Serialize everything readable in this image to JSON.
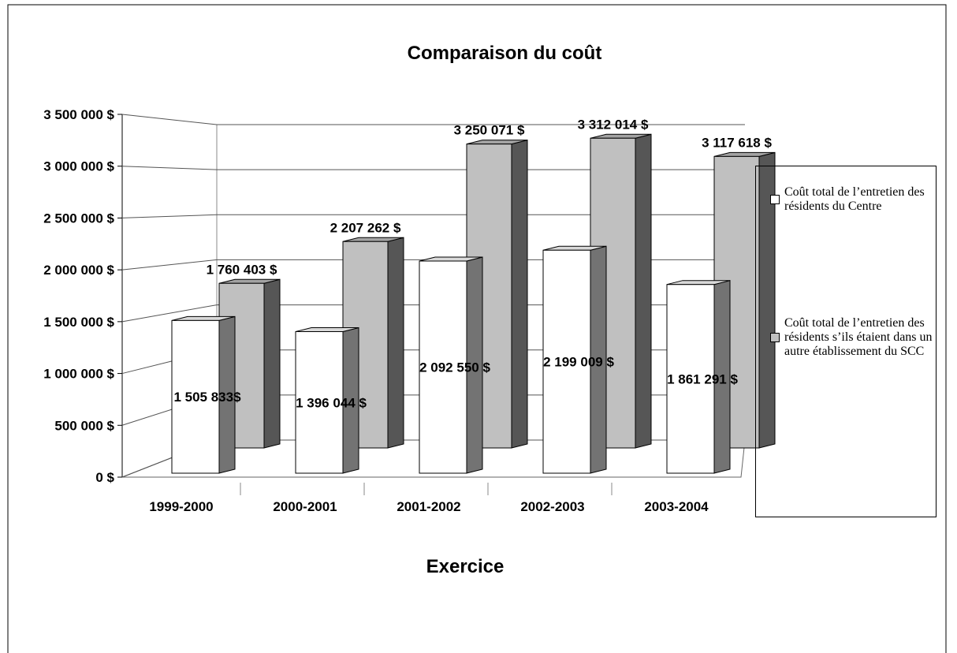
{
  "chart_data": {
    "type": "bar3d",
    "title": "Comparaison du coût",
    "xlabel": "Exercice",
    "categories": [
      "1999-2000",
      "2000-2001",
      "2001-2002",
      "2002-2003",
      "2003-2004"
    ],
    "series": [
      {
        "name": "Coût total de l’entretien des résidents du Centre",
        "color": "#ffffff",
        "values": [
          1505833,
          1396044,
          2092550,
          2199009,
          1861291
        ],
        "value_labels": [
          "1 505 833$",
          "1 396 044 $",
          "2 092 550 $",
          "2 199 009 $",
          "1 861 291 $"
        ]
      },
      {
        "name": "Coût total de l’entretien des résidents s’ils étaient dans un autre établissement du SCC",
        "color": "#c0c0c0",
        "values": [
          1760403,
          2207262,
          3250071,
          3312014,
          3117618
        ],
        "value_labels": [
          "1 760 403 $",
          "2 207 262 $",
          "3 250 071 $",
          "3 312 014 $",
          "3 117 618 $"
        ]
      }
    ],
    "ylim": [
      0,
      3500000
    ],
    "yticks": [
      {
        "value": 0,
        "label": "0 $"
      },
      {
        "value": 500000,
        "label": "500 000 $"
      },
      {
        "value": 1000000,
        "label": "1 000 000 $"
      },
      {
        "value": 1500000,
        "label": "1 500 000 $"
      },
      {
        "value": 2000000,
        "label": "2 000 000 $"
      },
      {
        "value": 2500000,
        "label": "2 500 000 $"
      },
      {
        "value": 3000000,
        "label": "3 000 000 $"
      },
      {
        "value": 3500000,
        "label": "3 500 000 $"
      }
    ],
    "grid": true,
    "legend": "right"
  }
}
